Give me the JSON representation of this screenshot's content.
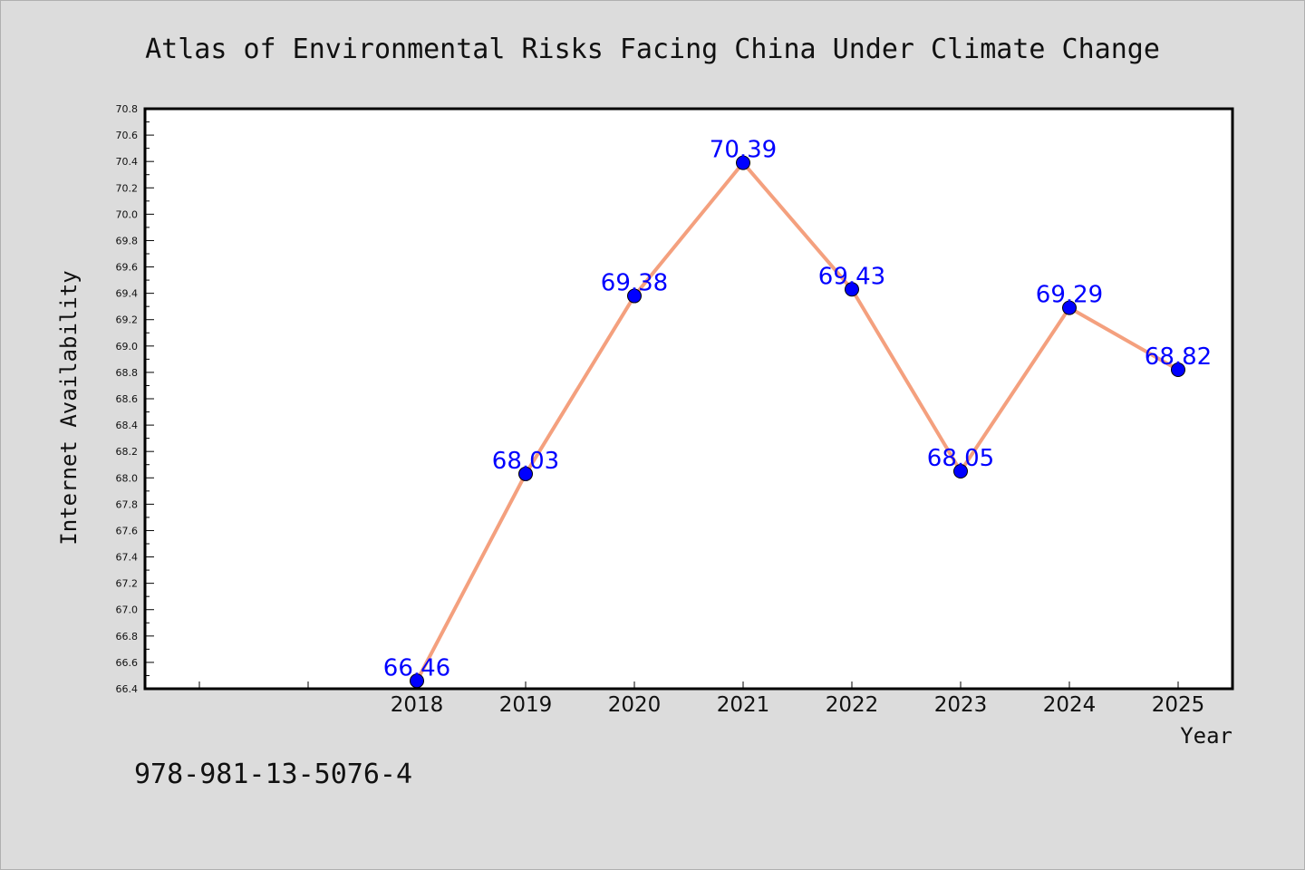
{
  "footer": {
    "isbn": "978-981-13-5076-4"
  },
  "colors": {
    "line": "#f4a07e",
    "marker": "#0000ff",
    "label": "#0000ff",
    "background": "#dcdcdc",
    "plot_bg": "#ffffff"
  },
  "chart_data": {
    "type": "line",
    "title": "Atlas of Environmental Risks Facing China Under Climate Change",
    "xlabel": "Year",
    "ylabel": "Internet Availability",
    "x": [
      "2018",
      "2019",
      "2020",
      "2021",
      "2022",
      "2023",
      "2024",
      "2025"
    ],
    "series": [
      {
        "values": [
          66.46,
          68.03,
          69.38,
          70.39,
          69.43,
          68.05,
          69.29,
          68.82
        ]
      }
    ],
    "data_labels": [
      "66.46",
      "68.03",
      "69.38",
      "70.39",
      "69.43",
      "68.05",
      "69.29",
      "68.82"
    ],
    "ylim": [
      66.4,
      70.8
    ],
    "yticks": [
      "66.4",
      "66.6",
      "66.8",
      "67.0",
      "67.2",
      "67.4",
      "67.6",
      "67.8",
      "68.0",
      "68.2",
      "68.4",
      "68.6",
      "68.8",
      "69.0",
      "69.2",
      "69.4",
      "69.6",
      "69.8",
      "70.0",
      "70.2",
      "70.4",
      "70.6",
      "70.8"
    ],
    "grid": false,
    "legend": "none"
  }
}
